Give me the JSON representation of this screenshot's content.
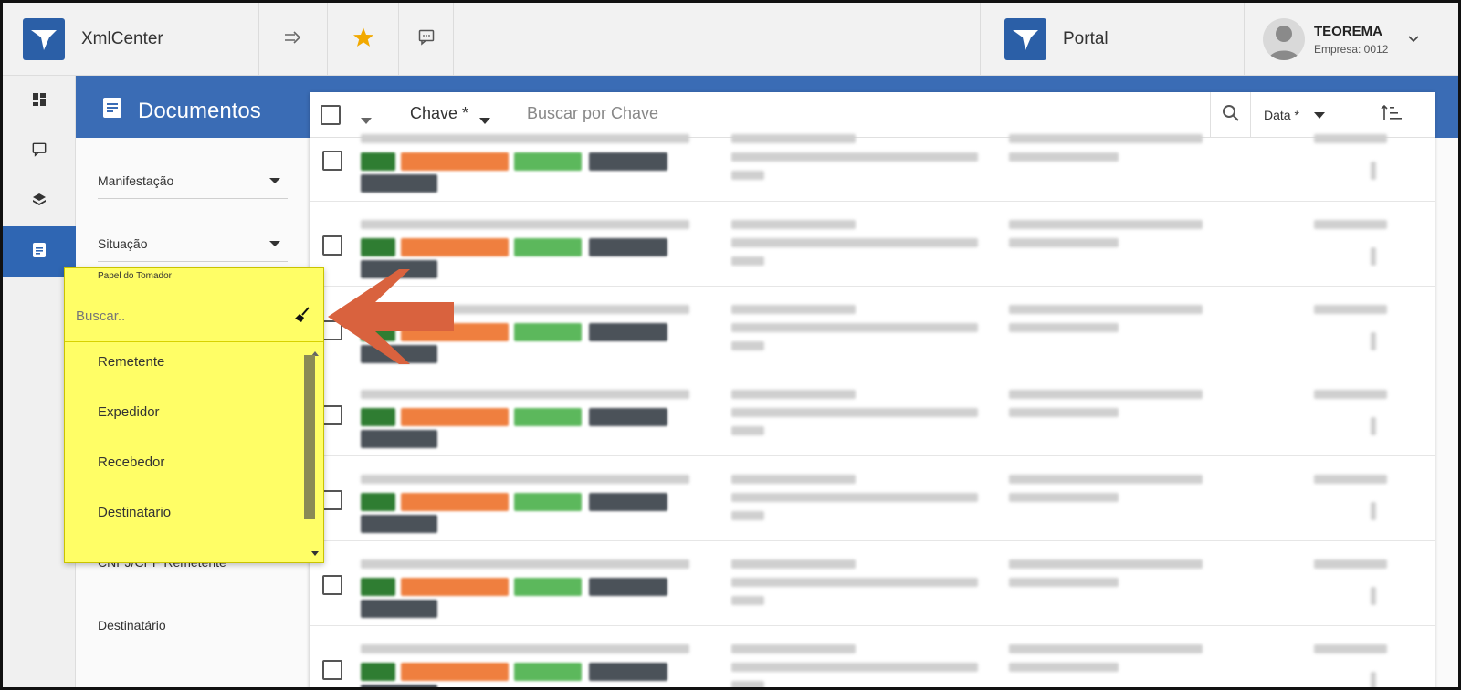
{
  "header": {
    "app_name": "XmlCenter",
    "portal_label": "Portal",
    "user": {
      "name": "TEOREMA",
      "company": "Empresa: 0012"
    }
  },
  "page": {
    "title": "Documentos"
  },
  "filters": {
    "manifestacao": "Manifestação",
    "situacao": "Situação",
    "cnpj_remetente": "CNPJ/CPF Remetente",
    "destinatario": "Destinatário"
  },
  "popup": {
    "label": "Papel do Tomador",
    "search_placeholder": "Buscar..",
    "options": [
      "Remetente",
      "Expedidor",
      "Recebedor",
      "Destinatario"
    ]
  },
  "searchbar": {
    "field_label": "Chave *",
    "placeholder": "Buscar por Chave",
    "sort_label": "Data *"
  },
  "colors": {
    "brand": "#2b5fa7",
    "band": "#3a6cb5",
    "highlight": "#fffe66",
    "arrow": "#d9623e",
    "tag_green_dark": "#2f7d32",
    "tag_orange": "#ef7f3f",
    "tag_green": "#5cb85c",
    "tag_gray": "#4b5259"
  }
}
